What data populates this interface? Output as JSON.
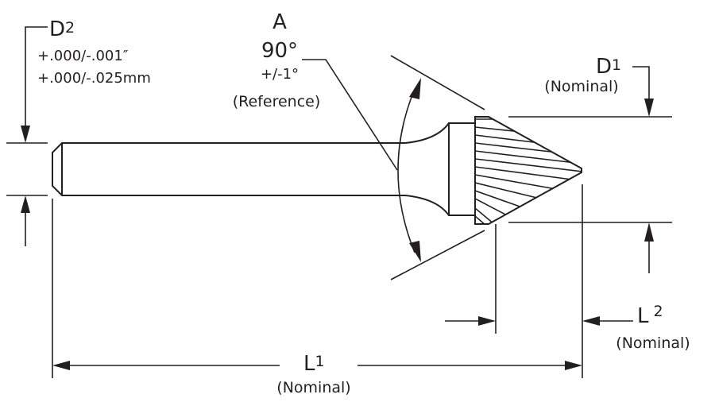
{
  "d2": {
    "letter": "D",
    "sub": "2",
    "tol_in": "+.000/-.001″",
    "tol_mm": "+.000/-.025mm"
  },
  "angle": {
    "letter": "A",
    "value": "90°",
    "tol": "+/-1°",
    "note": "(Reference)"
  },
  "d1": {
    "letter": "D",
    "sub": "1",
    "note": "(Nominal)"
  },
  "l2": {
    "letter": "L",
    "sub": "2",
    "note": "(Nominal)"
  },
  "l1": {
    "letter": "L",
    "sub": "1",
    "note": "(Nominal)"
  }
}
